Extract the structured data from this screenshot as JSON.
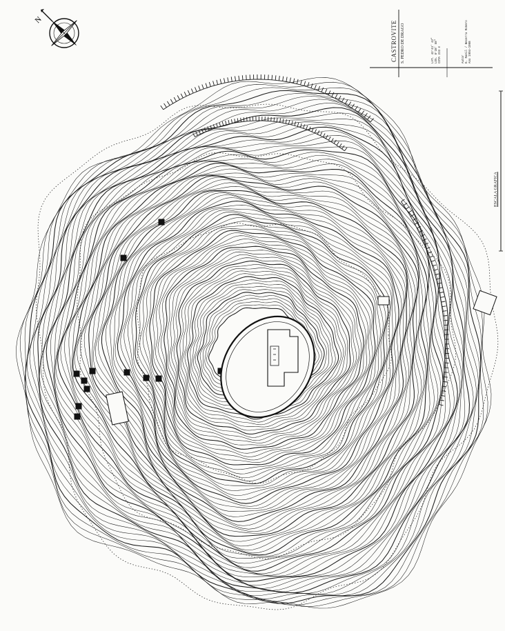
{
  "map": {
    "site_name": "CASTROVITE",
    "site_subtitle": "S. PEDRO DE DRAGO",
    "coordinates": [
      "LAT. 42°43' 42\"",
      "LON. 8°38' 58\"",
      "COTA 233 m"
    ],
    "survey_lines": [
      "Autor",
      "E. Ramil / Becerra Romero",
      "Ano 1994-1998"
    ],
    "scale_label": "ESCALA GRAFICA",
    "north_symbol": "N",
    "icons": [
      "north-arrow-compass-icon"
    ],
    "colors": {
      "ink": "#1a1a1a",
      "paper": "#fbfbf9"
    }
  }
}
